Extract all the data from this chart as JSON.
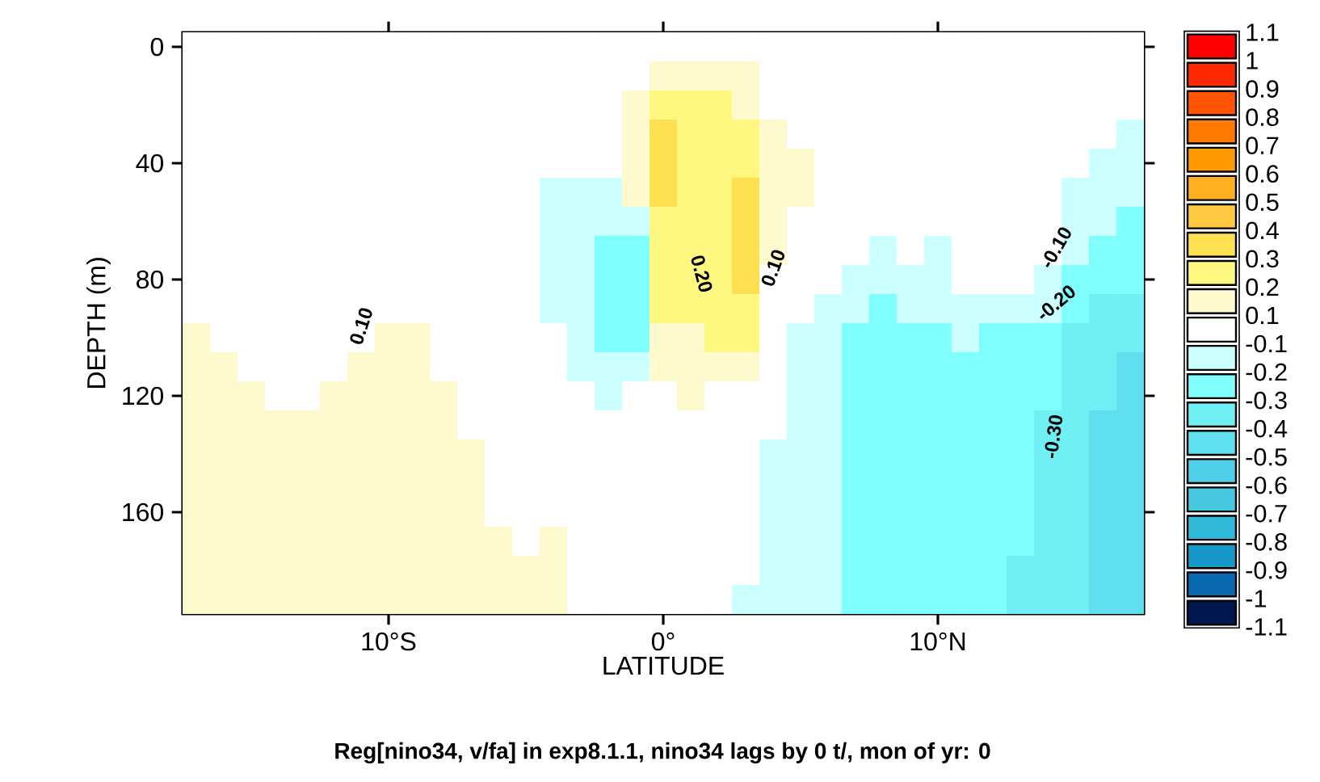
{
  "chart_data": {
    "type": "heatmap",
    "title": "Reg[nino34, v/fa] in exp8.1.1, nino34 lags by 0 t/, mon of yr: 0",
    "xlabel": "LATITUDE",
    "ylabel": "DEPTH (m)",
    "categories": [
      null,
      null,
      null,
      null,
      null,
      null,
      null,
      "10°S",
      null,
      null,
      null,
      null,
      null,
      null,
      null,
      null,
      null,
      "0°",
      null,
      null,
      null,
      null,
      null,
      null,
      null,
      null,
      null,
      "10°N",
      null,
      null,
      null,
      null,
      null,
      null,
      null
    ],
    "y_categories": [
      "0",
      null,
      null,
      null,
      "40",
      null,
      null,
      null,
      "80",
      null,
      null,
      null,
      "120",
      null,
      null,
      null,
      "160",
      null,
      null,
      null
    ],
    "cells": [
      [
        0,
        0,
        0,
        0,
        0,
        0,
        0,
        0,
        0,
        0,
        0,
        0,
        0,
        0,
        0,
        0,
        0,
        0,
        0,
        0,
        0,
        0,
        0,
        0,
        0,
        0,
        0,
        0,
        0,
        0,
        0,
        0,
        0,
        0,
        0
      ],
      [
        0,
        0,
        0,
        0,
        0,
        0,
        0,
        0,
        0,
        0,
        0,
        0,
        0,
        0,
        0,
        0,
        0,
        0.15,
        0.15,
        0.15,
        0.15,
        0,
        0,
        0,
        0,
        0,
        0,
        0,
        0,
        0,
        0,
        0,
        0,
        0,
        0
      ],
      [
        0,
        0,
        0,
        0,
        0,
        0,
        0,
        0,
        0,
        0,
        0,
        0,
        0,
        0,
        0,
        0,
        0.15,
        0.25,
        0.25,
        0.25,
        0.15,
        0,
        0,
        0,
        0,
        0,
        0,
        0,
        0,
        0,
        0,
        0,
        0,
        0,
        0
      ],
      [
        0,
        0,
        0,
        0,
        0,
        0,
        0,
        0,
        0,
        0,
        0,
        0,
        0,
        0,
        0,
        0,
        0.15,
        0.35,
        0.25,
        0.25,
        0.25,
        0.15,
        0,
        0,
        0,
        0,
        0,
        0,
        0,
        0,
        0,
        0,
        0,
        0,
        -0.15
      ],
      [
        0,
        0,
        0,
        0,
        0,
        0,
        0,
        0,
        0,
        0,
        0,
        0,
        0,
        0,
        0,
        0,
        0.15,
        0.35,
        0.25,
        0.25,
        0.25,
        0.15,
        0.15,
        0,
        0,
        0,
        0,
        0,
        0,
        0,
        0,
        0,
        0,
        -0.15,
        -0.15
      ],
      [
        0,
        0,
        0,
        0,
        0,
        0,
        0,
        0,
        0,
        0,
        0,
        0,
        0,
        -0.15,
        -0.15,
        -0.15,
        0.15,
        0.35,
        0.25,
        0.25,
        0.35,
        0.15,
        0.15,
        0,
        0,
        0,
        0,
        0,
        0,
        0,
        0,
        0,
        -0.15,
        -0.15,
        -0.15
      ],
      [
        0,
        0,
        0,
        0,
        0,
        0,
        0,
        0,
        0,
        0,
        0,
        0,
        0,
        -0.15,
        -0.15,
        -0.15,
        -0.15,
        0.25,
        0.25,
        0.25,
        0.35,
        0.15,
        0,
        0,
        0,
        0,
        0,
        0,
        0,
        0,
        0,
        0,
        -0.15,
        -0.15,
        -0.25
      ],
      [
        0,
        0,
        0,
        0,
        0,
        0,
        0,
        0,
        0,
        0,
        0,
        0,
        0,
        -0.15,
        -0.15,
        -0.25,
        -0.25,
        0.25,
        0.25,
        0.25,
        0.35,
        0.15,
        0,
        0,
        0,
        -0.15,
        0,
        -0.15,
        0,
        0,
        0,
        0,
        -0.15,
        -0.25,
        -0.25
      ],
      [
        0,
        0,
        0,
        0,
        0,
        0,
        0,
        0,
        0,
        0,
        0,
        0,
        0,
        -0.15,
        -0.15,
        -0.25,
        -0.25,
        0.25,
        0.25,
        0.25,
        0.35,
        0,
        0,
        0,
        -0.15,
        -0.15,
        -0.15,
        -0.15,
        0,
        0,
        0,
        -0.15,
        -0.25,
        -0.25,
        -0.25
      ],
      [
        0,
        0,
        0,
        0,
        0,
        0,
        0,
        0,
        0,
        0,
        0,
        0,
        0,
        -0.15,
        -0.15,
        -0.25,
        -0.25,
        0.25,
        0.25,
        0.25,
        0.25,
        0,
        0,
        -0.15,
        -0.15,
        -0.25,
        -0.15,
        -0.15,
        -0.15,
        -0.15,
        -0.15,
        -0.15,
        -0.25,
        -0.35,
        -0.35
      ],
      [
        0.15,
        0,
        0,
        0,
        0,
        0,
        0,
        0.15,
        0.15,
        0,
        0,
        0,
        0,
        0,
        -0.15,
        -0.25,
        -0.25,
        0.15,
        0.15,
        0.25,
        0.25,
        0,
        -0.15,
        -0.15,
        -0.25,
        -0.25,
        -0.25,
        -0.25,
        -0.15,
        -0.25,
        -0.25,
        -0.25,
        -0.35,
        -0.35,
        -0.35
      ],
      [
        0.15,
        0.15,
        0,
        0,
        0,
        0,
        0.15,
        0.15,
        0.15,
        0,
        0,
        0,
        0,
        0,
        -0.15,
        -0.15,
        -0.15,
        0.15,
        0.15,
        0.15,
        0.15,
        0,
        -0.15,
        -0.15,
        -0.25,
        -0.25,
        -0.25,
        -0.25,
        -0.25,
        -0.25,
        -0.25,
        -0.25,
        -0.35,
        -0.35,
        -0.45
      ],
      [
        0.15,
        0.15,
        0.15,
        0,
        0,
        0.15,
        0.15,
        0.15,
        0.15,
        0.15,
        0,
        0,
        0,
        0,
        0,
        -0.15,
        0,
        0,
        0.15,
        0,
        0,
        0,
        -0.15,
        -0.15,
        -0.25,
        -0.25,
        -0.25,
        -0.25,
        -0.25,
        -0.25,
        -0.25,
        -0.25,
        -0.35,
        -0.35,
        -0.45
      ],
      [
        0.15,
        0.15,
        0.15,
        0.15,
        0.15,
        0.15,
        0.15,
        0.15,
        0.15,
        0.15,
        0,
        0,
        0,
        0,
        0,
        0,
        0,
        0,
        0,
        0,
        0,
        0,
        -0.15,
        -0.15,
        -0.25,
        -0.25,
        -0.25,
        -0.25,
        -0.25,
        -0.25,
        -0.25,
        -0.35,
        -0.35,
        -0.45,
        -0.45
      ],
      [
        0.15,
        0.15,
        0.15,
        0.15,
        0.15,
        0.15,
        0.15,
        0.15,
        0.15,
        0.15,
        0.15,
        0,
        0,
        0,
        0,
        0,
        0,
        0,
        0,
        0,
        0,
        -0.15,
        -0.15,
        -0.15,
        -0.25,
        -0.25,
        -0.25,
        -0.25,
        -0.25,
        -0.25,
        -0.25,
        -0.35,
        -0.35,
        -0.45,
        -0.45
      ],
      [
        0.15,
        0.15,
        0.15,
        0.15,
        0.15,
        0.15,
        0.15,
        0.15,
        0.15,
        0.15,
        0.15,
        0,
        0,
        0,
        0,
        0,
        0,
        0,
        0,
        0,
        0,
        -0.15,
        -0.15,
        -0.15,
        -0.25,
        -0.25,
        -0.25,
        -0.25,
        -0.25,
        -0.25,
        -0.25,
        -0.35,
        -0.35,
        -0.45,
        -0.45
      ],
      [
        0.15,
        0.15,
        0.15,
        0.15,
        0.15,
        0.15,
        0.15,
        0.15,
        0.15,
        0.15,
        0.15,
        0,
        0,
        0,
        0,
        0,
        0,
        0,
        0,
        0,
        0,
        -0.15,
        -0.15,
        -0.15,
        -0.25,
        -0.25,
        -0.25,
        -0.25,
        -0.25,
        -0.25,
        -0.25,
        -0.35,
        -0.35,
        -0.45,
        -0.45
      ],
      [
        0.15,
        0.15,
        0.15,
        0.15,
        0.15,
        0.15,
        0.15,
        0.15,
        0.15,
        0.15,
        0.15,
        0.15,
        0,
        0.15,
        0,
        0,
        0,
        0,
        0,
        0,
        0,
        -0.15,
        -0.15,
        -0.15,
        -0.25,
        -0.25,
        -0.25,
        -0.25,
        -0.25,
        -0.25,
        -0.25,
        -0.35,
        -0.35,
        -0.45,
        -0.45
      ],
      [
        0.15,
        0.15,
        0.15,
        0.15,
        0.15,
        0.15,
        0.15,
        0.15,
        0.15,
        0.15,
        0.15,
        0.15,
        0.15,
        0.15,
        0,
        0,
        0,
        0,
        0,
        0,
        0,
        -0.15,
        -0.15,
        -0.15,
        -0.25,
        -0.25,
        -0.25,
        -0.25,
        -0.25,
        -0.25,
        -0.35,
        -0.35,
        -0.35,
        -0.45,
        -0.45
      ],
      [
        0.15,
        0.15,
        0.15,
        0.15,
        0.15,
        0.15,
        0.15,
        0.15,
        0.15,
        0.15,
        0.15,
        0.15,
        0.15,
        0.15,
        0,
        0,
        0,
        0,
        0,
        0,
        -0.15,
        -0.15,
        -0.15,
        -0.15,
        -0.25,
        -0.25,
        -0.25,
        -0.25,
        -0.25,
        -0.25,
        -0.35,
        -0.35,
        -0.35,
        -0.45,
        -0.45
      ]
    ],
    "clim": [
      -1.1,
      1.1
    ],
    "cticks": [
      -1.1,
      -1,
      -0.9,
      -0.8,
      -0.7,
      -0.6,
      -0.5,
      -0.4,
      -0.3,
      -0.2,
      -0.1,
      0.1,
      0.2,
      0.3,
      0.4,
      0.5,
      0.6,
      0.7,
      0.8,
      0.9,
      1,
      1.1
    ],
    "annotations": [
      "0.10",
      "0.20",
      "0.10",
      "-0.10",
      "-0.20",
      "-0.30"
    ]
  }
}
